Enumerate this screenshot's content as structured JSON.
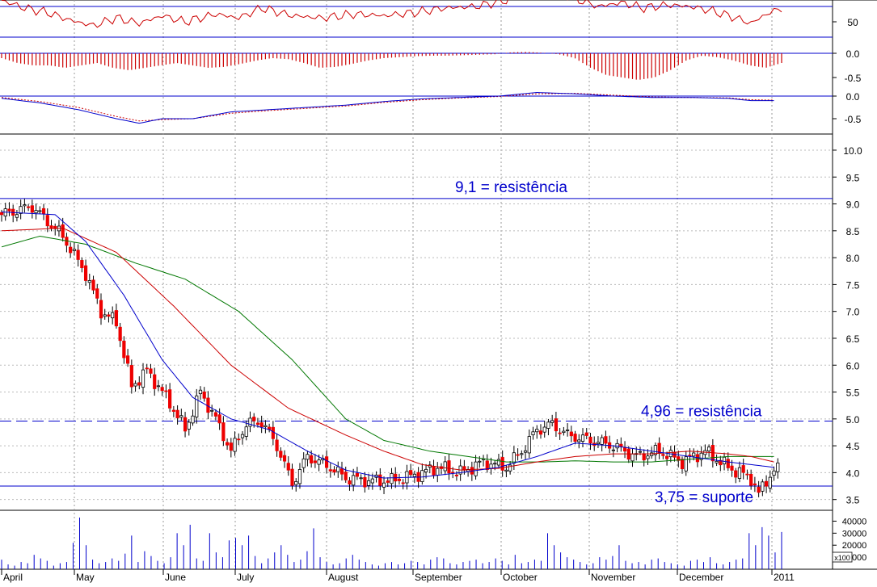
{
  "chart_data": {
    "type": "candlestick",
    "period_labels": [
      "April",
      "May",
      "June",
      "July",
      "August",
      "September",
      "October",
      "November",
      "December",
      "2011"
    ],
    "colors": {
      "up": "#ffffff",
      "down": "#ee0000",
      "ma_short": "#0000cc",
      "ma_medium": "#cc0000",
      "ma_long": "#007700",
      "annotation": "#0000cc",
      "volume": "#0000cc",
      "indicator": "#cc0000"
    },
    "price_panel": {
      "ylim": [
        3.3,
        10.3
      ],
      "ticks": [
        "3.5",
        "4.0",
        "4.5",
        "5.0",
        "5.5",
        "6.0",
        "6.5",
        "7.0",
        "7.5",
        "8.0",
        "8.5",
        "9.0",
        "9.5",
        "10.0"
      ],
      "annotations": [
        {
          "text": "9,1 = resistência",
          "value": 9.1,
          "style": "solid"
        },
        {
          "text": "4,96 = resistência",
          "value": 4.96,
          "style": "dashed"
        },
        {
          "text": "3,75 = suporte",
          "value": 3.75,
          "style": "solid"
        }
      ],
      "close_path": [
        [
          0,
          8.8
        ],
        [
          8,
          8.95
        ],
        [
          16,
          8.4
        ],
        [
          22,
          7.7
        ],
        [
          26,
          7.0
        ],
        [
          30,
          6.8
        ],
        [
          34,
          5.6
        ],
        [
          38,
          5.9
        ],
        [
          44,
          5.3
        ],
        [
          48,
          4.8
        ],
        [
          52,
          5.5
        ],
        [
          56,
          5.0
        ],
        [
          60,
          4.4
        ],
        [
          64,
          4.9
        ],
        [
          68,
          4.95
        ],
        [
          72,
          4.5
        ],
        [
          76,
          3.8
        ],
        [
          80,
          4.3
        ],
        [
          86,
          4.1
        ],
        [
          90,
          3.9
        ],
        [
          96,
          3.85
        ],
        [
          102,
          3.85
        ],
        [
          108,
          3.95
        ],
        [
          114,
          4.1
        ],
        [
          120,
          4.0
        ],
        [
          126,
          4.2
        ],
        [
          132,
          4.1
        ],
        [
          136,
          4.4
        ],
        [
          140,
          4.8
        ],
        [
          144,
          4.9
        ],
        [
          148,
          4.7
        ],
        [
          154,
          4.6
        ],
        [
          160,
          4.5
        ],
        [
          166,
          4.3
        ],
        [
          172,
          4.4
        ],
        [
          178,
          4.2
        ],
        [
          184,
          4.4
        ],
        [
          190,
          4.1
        ],
        [
          196,
          3.9
        ],
        [
          198,
          3.6
        ],
        [
          200,
          3.85
        ],
        [
          202,
          4.05
        ]
      ],
      "ma_short": [
        [
          0,
          8.85
        ],
        [
          14,
          8.8
        ],
        [
          22,
          8.3
        ],
        [
          32,
          7.3
        ],
        [
          42,
          6.1
        ],
        [
          50,
          5.4
        ],
        [
          60,
          5.0
        ],
        [
          70,
          4.8
        ],
        [
          80,
          4.4
        ],
        [
          90,
          4.05
        ],
        [
          100,
          3.9
        ],
        [
          110,
          3.92
        ],
        [
          120,
          4.0
        ],
        [
          130,
          4.1
        ],
        [
          140,
          4.3
        ],
        [
          150,
          4.55
        ],
        [
          160,
          4.5
        ],
        [
          170,
          4.4
        ],
        [
          180,
          4.3
        ],
        [
          190,
          4.2
        ],
        [
          196,
          4.15
        ],
        [
          202,
          4.1
        ]
      ],
      "ma_medium": [
        [
          0,
          8.5
        ],
        [
          16,
          8.55
        ],
        [
          30,
          8.1
        ],
        [
          45,
          7.1
        ],
        [
          60,
          6.0
        ],
        [
          75,
          5.2
        ],
        [
          90,
          4.7
        ],
        [
          100,
          4.4
        ],
        [
          110,
          4.15
        ],
        [
          120,
          4.05
        ],
        [
          130,
          4.08
        ],
        [
          140,
          4.2
        ],
        [
          150,
          4.3
        ],
        [
          160,
          4.35
        ],
        [
          170,
          4.35
        ],
        [
          180,
          4.4
        ],
        [
          190,
          4.35
        ],
        [
          196,
          4.3
        ],
        [
          202,
          4.2
        ]
      ],
      "ma_long": [
        [
          0,
          8.2
        ],
        [
          10,
          8.4
        ],
        [
          22,
          8.25
        ],
        [
          35,
          7.9
        ],
        [
          48,
          7.6
        ],
        [
          62,
          7.0
        ],
        [
          76,
          6.1
        ],
        [
          90,
          5.0
        ],
        [
          100,
          4.6
        ],
        [
          112,
          4.4
        ],
        [
          122,
          4.3
        ],
        [
          132,
          4.2
        ],
        [
          142,
          4.2
        ],
        [
          150,
          4.22
        ],
        [
          160,
          4.2
        ],
        [
          170,
          4.2
        ],
        [
          180,
          4.25
        ],
        [
          190,
          4.3
        ],
        [
          196,
          4.3
        ],
        [
          202,
          4.3
        ]
      ]
    },
    "oscillator_panel": {
      "ticks": [
        "50"
      ],
      "path": [
        [
          0,
          78
        ],
        [
          6,
          68
        ],
        [
          12,
          62
        ],
        [
          18,
          52
        ],
        [
          24,
          45
        ],
        [
          30,
          55
        ],
        [
          36,
          48
        ],
        [
          42,
          58
        ],
        [
          48,
          50
        ],
        [
          56,
          60
        ],
        [
          62,
          55
        ],
        [
          68,
          68
        ],
        [
          76,
          58
        ],
        [
          84,
          55
        ],
        [
          92,
          60
        ],
        [
          100,
          58
        ],
        [
          108,
          62
        ],
        [
          116,
          68
        ],
        [
          124,
          70
        ],
        [
          132,
          78
        ],
        [
          138,
          98
        ],
        [
          144,
          95
        ],
        [
          150,
          80
        ],
        [
          156,
          70
        ],
        [
          162,
          75
        ],
        [
          168,
          68
        ],
        [
          174,
          72
        ],
        [
          180,
          70
        ],
        [
          186,
          64
        ],
        [
          192,
          55
        ],
        [
          196,
          48
        ],
        [
          200,
          60
        ],
        [
          204,
          68
        ]
      ]
    },
    "histogram_panel": {
      "ticks": [
        "0.0",
        "-0.5"
      ],
      "values": [
        -0.1,
        -0.2,
        -0.25,
        -0.25,
        -0.3,
        -0.25,
        -0.2,
        -0.3,
        -0.35,
        -0.3,
        -0.25,
        -0.2,
        -0.25,
        -0.3,
        -0.28,
        -0.22,
        -0.15,
        -0.1,
        -0.12,
        -0.2,
        -0.3,
        -0.28,
        -0.22,
        -0.15,
        -0.1,
        -0.08,
        -0.06,
        -0.05,
        -0.05,
        -0.04,
        -0.03,
        -0.02,
        0.02,
        0.03,
        0.01,
        -0.02,
        -0.1,
        -0.3,
        -0.45,
        -0.5,
        -0.55,
        -0.5,
        -0.35,
        -0.15,
        -0.05,
        -0.08,
        -0.15,
        -0.25,
        -0.3,
        -0.2
      ]
    },
    "macd_panel": {
      "ticks": [
        "0.0",
        "-0.5"
      ],
      "macd": [
        [
          0,
          -0.05
        ],
        [
          10,
          -0.15
        ],
        [
          20,
          -0.3
        ],
        [
          30,
          -0.5
        ],
        [
          36,
          -0.6
        ],
        [
          42,
          -0.5
        ],
        [
          50,
          -0.5
        ],
        [
          60,
          -0.35
        ],
        [
          70,
          -0.3
        ],
        [
          80,
          -0.25
        ],
        [
          90,
          -0.2
        ],
        [
          100,
          -0.12
        ],
        [
          110,
          -0.06
        ],
        [
          120,
          -0.03
        ],
        [
          130,
          0.0
        ],
        [
          140,
          0.08
        ],
        [
          150,
          0.05
        ],
        [
          160,
          0.0
        ],
        [
          170,
          -0.03
        ],
        [
          180,
          -0.03
        ],
        [
          190,
          -0.05
        ],
        [
          196,
          -0.1
        ],
        [
          202,
          -0.1
        ]
      ],
      "signal": [
        [
          0,
          -0.03
        ],
        [
          10,
          -0.12
        ],
        [
          20,
          -0.25
        ],
        [
          30,
          -0.45
        ],
        [
          36,
          -0.55
        ],
        [
          42,
          -0.52
        ],
        [
          50,
          -0.5
        ],
        [
          60,
          -0.38
        ],
        [
          70,
          -0.32
        ],
        [
          80,
          -0.27
        ],
        [
          90,
          -0.22
        ],
        [
          100,
          -0.14
        ],
        [
          110,
          -0.08
        ],
        [
          120,
          -0.04
        ],
        [
          130,
          -0.01
        ],
        [
          140,
          0.05
        ],
        [
          150,
          0.06
        ],
        [
          160,
          0.02
        ],
        [
          170,
          -0.02
        ],
        [
          180,
          -0.03
        ],
        [
          190,
          -0.04
        ],
        [
          196,
          -0.08
        ],
        [
          202,
          -0.09
        ]
      ]
    },
    "volume_panel": {
      "ticks": [
        "40000",
        "30000",
        "20000",
        "10000"
      ],
      "multiplier": "x100",
      "values": [
        8000,
        4000,
        3000,
        6000,
        5000,
        12000,
        9000,
        7000,
        3000,
        5000,
        6000,
        22000,
        43000,
        20000,
        8000,
        5000,
        6000,
        9000,
        7000,
        13000,
        28000,
        6000,
        15000,
        11000,
        7000,
        5000,
        10000,
        30000,
        20000,
        37000,
        9000,
        7000,
        30000,
        14000,
        10000,
        24000,
        26000,
        20000,
        28000,
        11000,
        5000,
        9000,
        14000,
        20000,
        12000,
        6000,
        8000,
        15000,
        34000,
        10000,
        6000,
        4000,
        5000,
        9000,
        12000,
        8000,
        6000,
        4000,
        3000,
        5000,
        6000,
        4000,
        5000,
        7000,
        6000,
        4000,
        8000,
        10000,
        9000,
        5000,
        4000,
        6000,
        7000,
        8000,
        5000,
        6000,
        9000,
        7000,
        4000,
        12000,
        5000,
        6000,
        8000,
        7000,
        30000,
        20000,
        14000,
        10000,
        8000,
        6000,
        4000,
        5000,
        10000,
        8000,
        11000,
        20000,
        7000,
        5000,
        6000,
        4000,
        8000,
        9000,
        6000,
        5000,
        4000,
        3000,
        7000,
        8000,
        6000,
        10000,
        5000,
        4000,
        6000,
        8000,
        9000,
        30000,
        20000,
        35000,
        28000,
        14000,
        31000
      ]
    }
  }
}
